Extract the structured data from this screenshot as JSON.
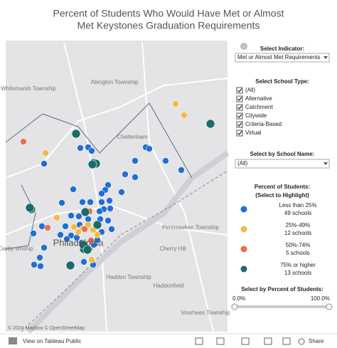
{
  "header": {
    "title": "Percent of Students Who Would Have Met or Almost Met Keystones Graduation Requirements"
  },
  "map": {
    "place_labels": [
      "Abington Township",
      "Whitemarsh Township",
      "Cheltenham",
      "Pennsauken Township",
      "Cherry Hill",
      "Haddon Township",
      "Haddonfield",
      "Voorhees Township",
      "r Darby wnship",
      "Philadelphia"
    ],
    "attribution": "© 2024 Mapbox © OpenStreetMap"
  },
  "filters": {
    "indicator": {
      "label": "Select Indicator:",
      "selected": "Met or Almost Met Requirements"
    },
    "school_type": {
      "label": "Select School Type:",
      "options": [
        "(All)",
        "Alternative",
        "Catchment",
        "Citywide",
        "Criteria-Based",
        "Virtual"
      ]
    },
    "school_name": {
      "label": "Select by School Name:",
      "selected": "(All)"
    },
    "percent_slider": {
      "label": "Select by Percent of Students:",
      "min_label": "0.0%",
      "max_label": "100.0%"
    }
  },
  "legend": {
    "title": "Percent of Students:",
    "subtitle": "(Select to Highlight)",
    "items": [
      {
        "label": "Less than 25%",
        "count": "49 schools",
        "color": "#1f6fd6"
      },
      {
        "label": "25%-49%",
        "count": "12 schools",
        "color": "#f3b94a"
      },
      {
        "label": "50%-74%",
        "count": "5 schools",
        "color": "#e8704c"
      },
      {
        "label": "75% or higher",
        "count": "13 schools",
        "color": "#1b6b68"
      }
    ]
  },
  "footer": {
    "link": "View on Tableau Public",
    "share": "Share"
  }
}
